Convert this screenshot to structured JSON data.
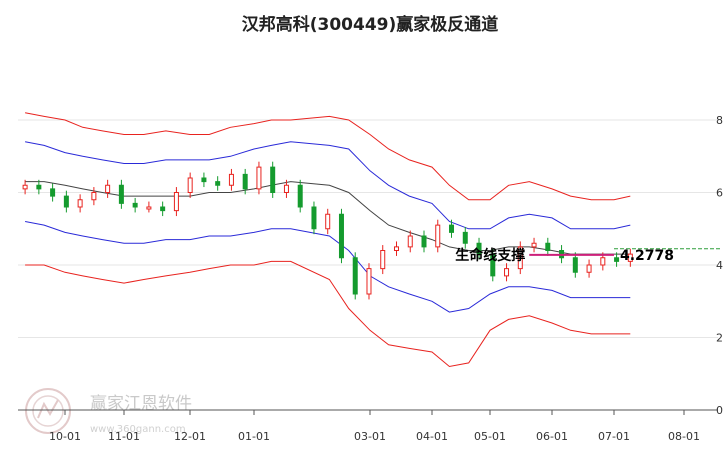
{
  "chart_data": {
    "type": "line",
    "title": "汉邦高科(300449)赢家极反通道",
    "xlabel": "",
    "ylabel": "",
    "x_ticks": [
      "10-01",
      "11-01",
      "12-01",
      "01-01",
      "03-01",
      "04-01",
      "05-01",
      "06-01",
      "07-01",
      "08-01"
    ],
    "y_ticks": [
      "0",
      "2",
      "4",
      "6",
      "8"
    ],
    "ylim": [
      0,
      9
    ],
    "grid": true,
    "x": [
      "09-10",
      "09-20",
      "10-01",
      "10-10",
      "10-20",
      "11-01",
      "11-10",
      "11-20",
      "12-01",
      "12-10",
      "12-20",
      "01-01",
      "01-10",
      "01-20",
      "02-10",
      "02-20",
      "03-01",
      "03-10",
      "03-20",
      "04-01",
      "04-10",
      "04-20",
      "05-01",
      "05-10",
      "05-20",
      "06-01",
      "06-10",
      "06-20",
      "07-01",
      "07-08"
    ],
    "series": [
      {
        "name": "",
        "color": "#e8231f",
        "values": [
          8.2,
          8.1,
          8.0,
          7.8,
          7.7,
          7.6,
          7.6,
          7.7,
          7.6,
          7.6,
          7.8,
          7.9,
          8.0,
          8.0,
          8.1,
          8.0,
          7.6,
          7.2,
          6.9,
          6.7,
          6.2,
          5.8,
          5.8,
          6.2,
          6.3,
          6.1,
          5.9,
          5.8,
          5.8,
          5.9
        ]
      },
      {
        "name": "",
        "color": "#2a2ad8",
        "values": [
          7.4,
          7.3,
          7.1,
          7.0,
          6.9,
          6.8,
          6.8,
          6.9,
          6.9,
          6.9,
          7.0,
          7.2,
          7.3,
          7.4,
          7.3,
          7.2,
          6.6,
          6.2,
          5.9,
          5.7,
          5.2,
          5.0,
          5.0,
          5.3,
          5.4,
          5.3,
          5.0,
          5.0,
          5.0,
          5.1
        ]
      },
      {
        "name": "",
        "color": "#444444",
        "values": [
          6.3,
          6.3,
          6.2,
          6.1,
          6.0,
          5.9,
          5.9,
          5.9,
          5.9,
          6.0,
          6.0,
          6.1,
          6.2,
          6.3,
          6.2,
          6.0,
          5.5,
          5.1,
          4.9,
          4.7,
          4.5,
          4.4,
          4.4,
          4.5,
          4.5,
          4.4,
          4.3,
          4.3,
          4.3,
          4.3
        ]
      },
      {
        "name": "",
        "color": "#2a2ad8",
        "values": [
          5.2,
          5.1,
          4.9,
          4.8,
          4.7,
          4.6,
          4.6,
          4.7,
          4.7,
          4.8,
          4.8,
          4.9,
          5.0,
          5.0,
          4.8,
          4.4,
          3.7,
          3.4,
          3.2,
          3.0,
          2.7,
          2.8,
          3.2,
          3.4,
          3.4,
          3.3,
          3.1,
          3.1,
          3.1,
          3.1
        ]
      },
      {
        "name": "",
        "color": "#e8231f",
        "values": [
          4.0,
          4.0,
          3.8,
          3.7,
          3.6,
          3.5,
          3.6,
          3.7,
          3.8,
          3.9,
          4.0,
          4.0,
          4.1,
          4.1,
          3.6,
          2.8,
          2.2,
          1.8,
          1.7,
          1.6,
          1.2,
          1.3,
          2.2,
          2.5,
          2.6,
          2.4,
          2.2,
          2.1,
          2.1,
          2.1
        ]
      }
    ],
    "candles": [
      6.2,
      6.1,
      5.9,
      5.6,
      5.8,
      6.0,
      6.2,
      5.7,
      5.6,
      5.6,
      5.5,
      6.0,
      6.4,
      6.3,
      6.2,
      6.5,
      6.1,
      6.7,
      6.0,
      6.2,
      5.6,
      5.0,
      5.4,
      4.2,
      3.2,
      3.9,
      4.4,
      4.5,
      4.8,
      4.5,
      5.1,
      4.9,
      4.6,
      4.3,
      3.7,
      3.9,
      4.5,
      4.6,
      4.4,
      4.2,
      3.8,
      4.0,
      4.2,
      4.1,
      4.3
    ],
    "support_line": {
      "label": "生命线支撑",
      "value": "4.2778",
      "level": 4.2778
    }
  },
  "watermark": {
    "text": "赢家江恩软件",
    "url": "www.360gann.com"
  },
  "colors": {
    "up": "#e8231f",
    "down": "#159b2e",
    "support": "#cc1f7a",
    "support_ext": "#2e9e3a"
  }
}
